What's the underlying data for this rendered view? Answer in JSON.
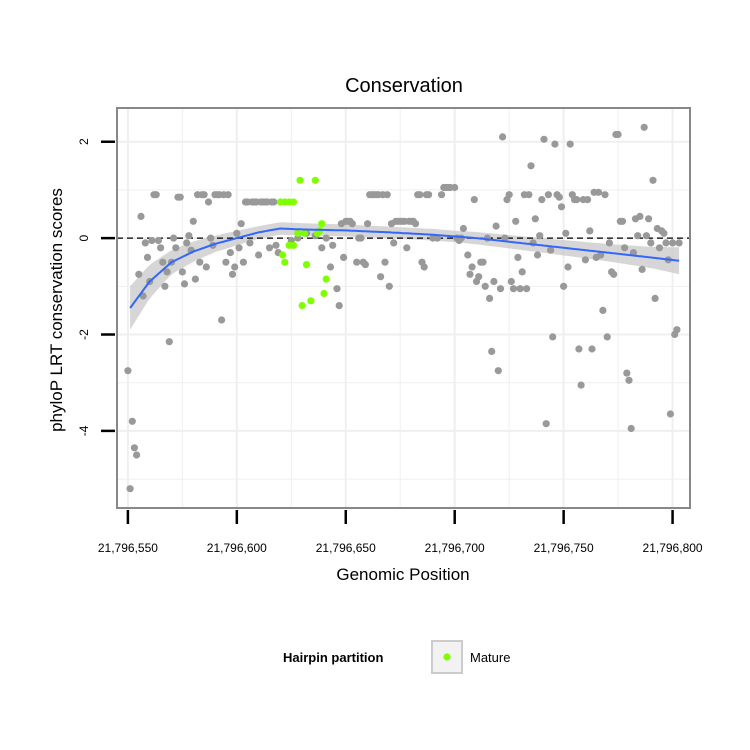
{
  "chart_data": {
    "type": "scatter",
    "title": "Conservation",
    "xlabel": "Genomic Position",
    "ylabel": "phyloP LRT conservation scores",
    "xlim": [
      21796545,
      21796808
    ],
    "ylim": [
      -5.6,
      2.7
    ],
    "x_ticks": [
      {
        "value": 21796550,
        "label": "21,796,550"
      },
      {
        "value": 21796600,
        "label": "21,796,600"
      },
      {
        "value": 21796650,
        "label": "21,796,650"
      },
      {
        "value": 21796700,
        "label": "21,796,700"
      },
      {
        "value": 21796750,
        "label": "21,796,750"
      },
      {
        "value": 21796800,
        "label": "21,796,800"
      }
    ],
    "y_ticks": [
      {
        "value": 2,
        "label": "2"
      },
      {
        "value": 0,
        "label": "0"
      },
      {
        "value": -2,
        "label": "-2"
      },
      {
        "value": -4,
        "label": "-4"
      }
    ],
    "reference_line": {
      "y": 0,
      "style": "dashed"
    },
    "grid": true,
    "legend": {
      "title": "Hairpin partition",
      "position": "bottom",
      "entries": [
        "Mature"
      ]
    },
    "colors": {
      "other": "#999999",
      "mature": "#7fff00",
      "smooth": "#3366ff",
      "ribbon": "#c8c8c8",
      "panel_border": "#888888",
      "grid": "#efefef"
    },
    "series": [
      {
        "name": "",
        "color": "#999999",
        "points": [
          [
            21796550,
            -2.75
          ],
          [
            21796551,
            -5.2
          ],
          [
            21796552,
            -3.8
          ],
          [
            21796553,
            -4.35
          ],
          [
            21796554,
            -4.5
          ],
          [
            21796555,
            -0.75
          ],
          [
            21796556,
            0.45
          ],
          [
            21796557,
            -1.2
          ],
          [
            21796558,
            -0.1
          ],
          [
            21796559,
            -0.4
          ],
          [
            21796560,
            -0.9
          ],
          [
            21796561,
            -0.05
          ],
          [
            21796562,
            0.9
          ],
          [
            21796563,
            0.9
          ],
          [
            21796564,
            -0.05
          ],
          [
            21796565,
            -0.2
          ],
          [
            21796566,
            -0.5
          ],
          [
            21796567,
            -1.0
          ],
          [
            21796568,
            -0.7
          ],
          [
            21796569,
            -2.15
          ],
          [
            21796570,
            -0.5
          ],
          [
            21796571,
            0.0
          ],
          [
            21796572,
            -0.2
          ],
          [
            21796573,
            0.85
          ],
          [
            21796574,
            0.85
          ],
          [
            21796575,
            -0.7
          ],
          [
            21796576,
            -0.95
          ],
          [
            21796577,
            -0.1
          ],
          [
            21796578,
            0.05
          ],
          [
            21796579,
            -0.25
          ],
          [
            21796580,
            0.35
          ],
          [
            21796581,
            -0.85
          ],
          [
            21796582,
            0.9
          ],
          [
            21796583,
            -0.5
          ],
          [
            21796584,
            0.9
          ],
          [
            21796585,
            0.9
          ],
          [
            21796586,
            -0.6
          ],
          [
            21796587,
            0.75
          ],
          [
            21796588,
            0.0
          ],
          [
            21796589,
            -0.15
          ],
          [
            21796590,
            0.9
          ],
          [
            21796591,
            0.9
          ],
          [
            21796592,
            0.9
          ],
          [
            21796593,
            -1.7
          ],
          [
            21796594,
            0.9
          ],
          [
            21796595,
            -0.5
          ],
          [
            21796596,
            0.9
          ],
          [
            21796597,
            -0.3
          ],
          [
            21796598,
            -0.75
          ],
          [
            21796599,
            -0.6
          ],
          [
            21796600,
            0.1
          ],
          [
            21796601,
            -0.2
          ],
          [
            21796602,
            0.3
          ],
          [
            21796603,
            -0.5
          ],
          [
            21796604,
            0.75
          ],
          [
            21796605,
            0.75
          ],
          [
            21796606,
            -0.1
          ],
          [
            21796607,
            0.75
          ],
          [
            21796608,
            0.75
          ],
          [
            21796609,
            0.75
          ],
          [
            21796610,
            -0.35
          ],
          [
            21796611,
            0.75
          ],
          [
            21796612,
            0.75
          ],
          [
            21796613,
            0.75
          ],
          [
            21796614,
            0.75
          ],
          [
            21796615,
            -0.2
          ],
          [
            21796616,
            0.75
          ],
          [
            21796617,
            0.75
          ],
          [
            21796618,
            -0.15
          ],
          [
            21796619,
            -0.3
          ],
          [
            21796625,
            -0.05
          ],
          [
            21796628,
            0.0
          ],
          [
            21796632,
            0.1
          ],
          [
            21796636,
            0.05
          ],
          [
            21796639,
            -0.2
          ],
          [
            21796641,
            0.0
          ],
          [
            21796643,
            -0.6
          ],
          [
            21796644,
            -0.15
          ],
          [
            21796646,
            -1.05
          ],
          [
            21796647,
            -1.4
          ],
          [
            21796648,
            0.3
          ],
          [
            21796649,
            -0.4
          ],
          [
            21796650,
            0.35
          ],
          [
            21796651,
            0.35
          ],
          [
            21796652,
            0.35
          ],
          [
            21796653,
            0.3
          ],
          [
            21796655,
            -0.5
          ],
          [
            21796656,
            0.0
          ],
          [
            21796657,
            0.0
          ],
          [
            21796658,
            -0.5
          ],
          [
            21796659,
            -0.55
          ],
          [
            21796660,
            0.3
          ],
          [
            21796661,
            0.9
          ],
          [
            21796662,
            0.9
          ],
          [
            21796663,
            0.9
          ],
          [
            21796664,
            0.9
          ],
          [
            21796665,
            0.9
          ],
          [
            21796666,
            -0.8
          ],
          [
            21796667,
            0.9
          ],
          [
            21796668,
            -0.5
          ],
          [
            21796669,
            0.9
          ],
          [
            21796670,
            -1.0
          ],
          [
            21796671,
            0.3
          ],
          [
            21796672,
            -0.1
          ],
          [
            21796673,
            0.35
          ],
          [
            21796674,
            0.35
          ],
          [
            21796675,
            0.35
          ],
          [
            21796676,
            0.35
          ],
          [
            21796677,
            0.35
          ],
          [
            21796678,
            -0.2
          ],
          [
            21796679,
            0.35
          ],
          [
            21796680,
            0.35
          ],
          [
            21796681,
            0.35
          ],
          [
            21796682,
            0.3
          ],
          [
            21796683,
            0.9
          ],
          [
            21796684,
            0.9
          ],
          [
            21796685,
            -0.5
          ],
          [
            21796686,
            -0.6
          ],
          [
            21796687,
            0.9
          ],
          [
            21796688,
            0.9
          ],
          [
            21796690,
            0.0
          ],
          [
            21796692,
            0.0
          ],
          [
            21796694,
            0.9
          ],
          [
            21796695,
            1.05
          ],
          [
            21796696,
            1.05
          ],
          [
            21796697,
            1.05
          ],
          [
            21796698,
            1.05
          ],
          [
            21796700,
            1.05
          ],
          [
            21796701,
            0.0
          ],
          [
            21796702,
            -0.05
          ],
          [
            21796703,
            0.0
          ],
          [
            21796704,
            0.2
          ],
          [
            21796706,
            -0.35
          ],
          [
            21796707,
            -0.75
          ],
          [
            21796708,
            -0.6
          ],
          [
            21796709,
            0.8
          ],
          [
            21796710,
            -0.9
          ],
          [
            21796711,
            -0.8
          ],
          [
            21796712,
            -0.5
          ],
          [
            21796713,
            -0.5
          ],
          [
            21796714,
            -1.0
          ],
          [
            21796715,
            0.0
          ],
          [
            21796716,
            -1.25
          ],
          [
            21796717,
            -2.35
          ],
          [
            21796718,
            -0.9
          ],
          [
            21796719,
            0.25
          ],
          [
            21796720,
            -2.75
          ],
          [
            21796721,
            -1.05
          ],
          [
            21796722,
            2.1
          ],
          [
            21796723,
            0.0
          ],
          [
            21796724,
            0.8
          ],
          [
            21796725,
            0.9
          ],
          [
            21796726,
            -0.9
          ],
          [
            21796727,
            -1.05
          ],
          [
            21796728,
            0.35
          ],
          [
            21796729,
            -0.4
          ],
          [
            21796730,
            -1.05
          ],
          [
            21796731,
            -0.7
          ],
          [
            21796732,
            0.9
          ],
          [
            21796733,
            -1.05
          ],
          [
            21796734,
            0.9
          ],
          [
            21796735,
            1.5
          ],
          [
            21796736,
            -0.1
          ],
          [
            21796737,
            0.4
          ],
          [
            21796738,
            -0.35
          ],
          [
            21796739,
            0.05
          ],
          [
            21796740,
            0.8
          ],
          [
            21796741,
            2.05
          ],
          [
            21796742,
            -3.85
          ],
          [
            21796743,
            0.9
          ],
          [
            21796744,
            -0.25
          ],
          [
            21796745,
            -2.05
          ],
          [
            21796746,
            1.95
          ],
          [
            21796747,
            0.9
          ],
          [
            21796748,
            0.85
          ],
          [
            21796749,
            0.65
          ],
          [
            21796750,
            -1.0
          ],
          [
            21796751,
            0.1
          ],
          [
            21796752,
            -0.6
          ],
          [
            21796753,
            1.95
          ],
          [
            21796754,
            0.9
          ],
          [
            21796755,
            0.8
          ],
          [
            21796756,
            0.8
          ],
          [
            21796757,
            -2.3
          ],
          [
            21796758,
            -3.05
          ],
          [
            21796759,
            0.8
          ],
          [
            21796760,
            -0.45
          ],
          [
            21796761,
            0.8
          ],
          [
            21796762,
            0.15
          ],
          [
            21796763,
            -2.3
          ],
          [
            21796764,
            0.95
          ],
          [
            21796765,
            -0.4
          ],
          [
            21796766,
            0.95
          ],
          [
            21796767,
            -0.35
          ],
          [
            21796768,
            -1.5
          ],
          [
            21796769,
            0.9
          ],
          [
            21796770,
            -2.05
          ],
          [
            21796771,
            -0.1
          ],
          [
            21796772,
            -0.7
          ],
          [
            21796773,
            -0.75
          ],
          [
            21796774,
            2.15
          ],
          [
            21796775,
            2.15
          ],
          [
            21796776,
            0.35
          ],
          [
            21796777,
            0.35
          ],
          [
            21796778,
            -0.2
          ],
          [
            21796779,
            -2.8
          ],
          [
            21796780,
            -2.95
          ],
          [
            21796781,
            -3.95
          ],
          [
            21796782,
            -0.3
          ],
          [
            21796783,
            0.4
          ],
          [
            21796784,
            0.05
          ],
          [
            21796785,
            0.45
          ],
          [
            21796786,
            -0.65
          ],
          [
            21796787,
            2.3
          ],
          [
            21796788,
            0.05
          ],
          [
            21796789,
            0.4
          ],
          [
            21796790,
            -0.1
          ],
          [
            21796791,
            1.2
          ],
          [
            21796792,
            -1.25
          ],
          [
            21796793,
            0.2
          ],
          [
            21796794,
            -0.2
          ],
          [
            21796795,
            0.15
          ],
          [
            21796796,
            0.1
          ],
          [
            21796797,
            -0.1
          ],
          [
            21796798,
            -0.45
          ],
          [
            21796799,
            -3.65
          ],
          [
            21796800,
            -0.1
          ],
          [
            21796801,
            -2.0
          ],
          [
            21796802,
            -1.9
          ],
          [
            21796803,
            -0.1
          ]
        ]
      },
      {
        "name": "Mature",
        "color": "#7fff00",
        "points": [
          [
            21796620,
            0.75
          ],
          [
            21796622,
            0.75
          ],
          [
            21796624,
            0.75
          ],
          [
            21796626,
            0.75
          ],
          [
            21796621,
            -0.35
          ],
          [
            21796622,
            -0.5
          ],
          [
            21796624,
            -0.15
          ],
          [
            21796626,
            -0.15
          ],
          [
            21796628,
            0.1
          ],
          [
            21796629,
            1.2
          ],
          [
            21796630,
            -1.4
          ],
          [
            21796631,
            0.1
          ],
          [
            21796632,
            -0.55
          ],
          [
            21796634,
            -1.3
          ],
          [
            21796636,
            1.2
          ],
          [
            21796637,
            0.1
          ],
          [
            21796638,
            0.15
          ],
          [
            21796639,
            0.3
          ],
          [
            21796640,
            -1.15
          ],
          [
            21796641,
            -0.85
          ]
        ]
      }
    ],
    "smooth_curve": [
      [
        21796551,
        -1.45
      ],
      [
        21796560,
        -0.9
      ],
      [
        21796570,
        -0.5
      ],
      [
        21796580,
        -0.28
      ],
      [
        21796590,
        -0.12
      ],
      [
        21796600,
        0.0
      ],
      [
        21796610,
        0.12
      ],
      [
        21796620,
        0.2
      ],
      [
        21796630,
        0.18
      ],
      [
        21796650,
        0.16
      ],
      [
        21796670,
        0.12
      ],
      [
        21796690,
        0.07
      ],
      [
        21796710,
        0.0
      ],
      [
        21796730,
        -0.1
      ],
      [
        21796750,
        -0.2
      ],
      [
        21796770,
        -0.3
      ],
      [
        21796790,
        -0.4
      ],
      [
        21796803,
        -0.47
      ]
    ],
    "ribbon_halfwidth": [
      [
        21796551,
        0.45
      ],
      [
        21796560,
        0.35
      ],
      [
        21796570,
        0.25
      ],
      [
        21796590,
        0.17
      ],
      [
        21796610,
        0.13
      ],
      [
        21796630,
        0.13
      ],
      [
        21796660,
        0.12
      ],
      [
        21796700,
        0.12
      ],
      [
        21796740,
        0.15
      ],
      [
        21796770,
        0.18
      ],
      [
        21796790,
        0.22
      ],
      [
        21796803,
        0.28
      ]
    ]
  }
}
